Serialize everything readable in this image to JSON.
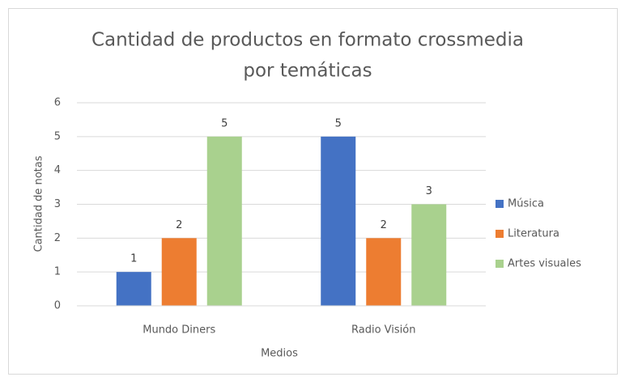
{
  "chart_data": {
    "type": "bar",
    "title": [
      "Cantidad de productos en formato  crossmedia",
      "por temáticas"
    ],
    "x_label": "Medios",
    "y_label": "Cantidad de notas",
    "categories": [
      "Mundo Diners",
      "Radio Visión"
    ],
    "series": [
      {
        "name": "Música",
        "color": "#4472c4",
        "values": [
          1,
          5
        ]
      },
      {
        "name": "Literatura",
        "color": "#ed7d31",
        "values": [
          2,
          2
        ]
      },
      {
        "name": "Artes visuales",
        "color": "#a9d18e",
        "values": [
          5,
          3
        ]
      }
    ],
    "ylim": [
      0,
      6
    ],
    "yticks": [
      0,
      1,
      2,
      3,
      4,
      5,
      6
    ],
    "grid": true,
    "legend": "right"
  }
}
